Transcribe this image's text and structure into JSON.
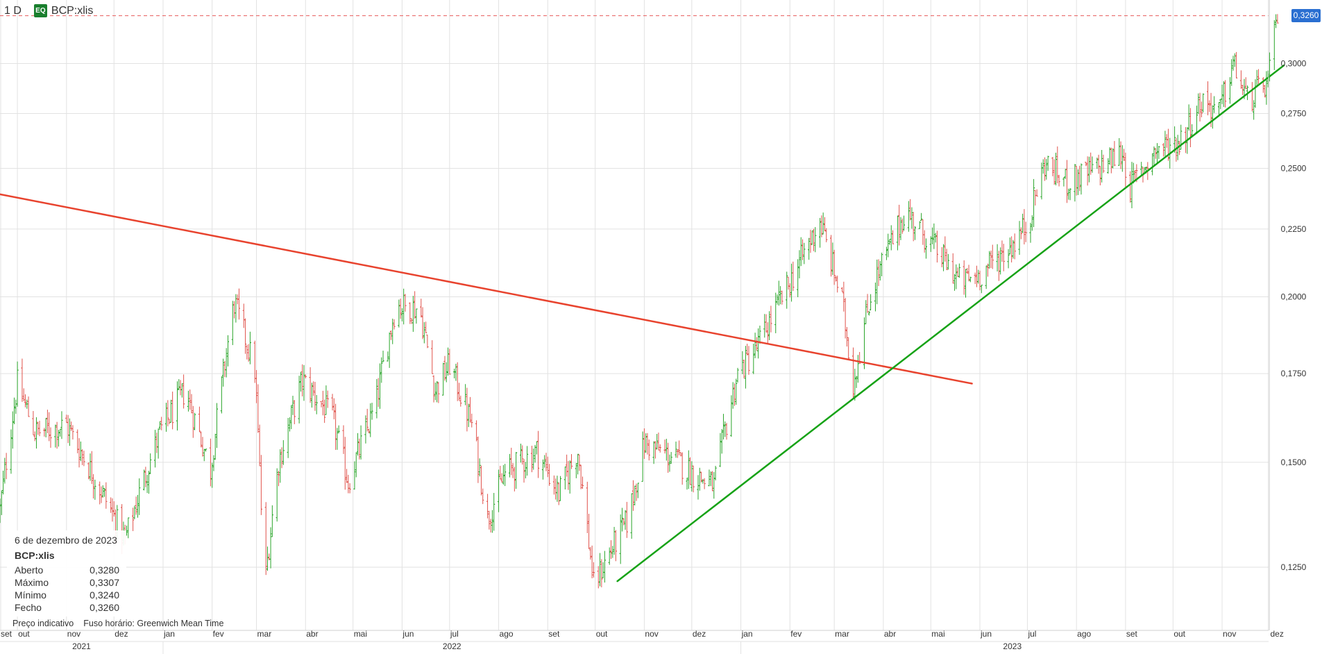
{
  "header": {
    "period": "1 D",
    "badge": "EQ",
    "symbol": "BCP:xlis"
  },
  "info_box": {
    "date": "6 de dezembro de 2023",
    "symbol": "BCP:xlis",
    "rows": [
      {
        "label": "Aberto",
        "value": "0,3280"
      },
      {
        "label": "Máximo",
        "value": "0,3307"
      },
      {
        "label": "Mínimo",
        "value": "0,3240"
      },
      {
        "label": "Fecho",
        "value": "0,3260"
      }
    ]
  },
  "footer": {
    "price_note": "Preço indicativo",
    "timezone": "Fuso horário: Greenwich Mean Time"
  },
  "last_price_label": "0,3260",
  "colors": {
    "up": "#2aa52a",
    "down": "#e0524b",
    "resistance": "#e8432e",
    "support": "#17a317",
    "last_price": "#2a6fd1",
    "grid": "#e2e2e2"
  },
  "chart_data": {
    "type": "candlestick",
    "title": "BCP:xlis",
    "xlabel": "",
    "ylabel": "",
    "ylim": [
      0.112,
      0.335
    ],
    "y_scale": "log",
    "y_ticks": [
      "0,1250",
      "0,1500",
      "0,1750",
      "0,2000",
      "0,2250",
      "0,2500",
      "0,2750",
      "0,3000"
    ],
    "x_month_labels": [
      "set",
      "out",
      "nov",
      "dez",
      "jan",
      "fev",
      "mar",
      "abr",
      "mai",
      "jun",
      "jul",
      "ago",
      "set",
      "out",
      "nov",
      "dez",
      "jan",
      "fev",
      "mar",
      "abr",
      "mai",
      "jun",
      "jul",
      "ago",
      "set",
      "out",
      "nov",
      "dez"
    ],
    "x_year_labels": [
      "2021",
      "2022",
      "2023"
    ],
    "x_range": [
      "2021-09-20",
      "2023-12-10"
    ],
    "last_price": 0.326,
    "grid": true,
    "anchors": [
      [
        "2021-09-20",
        0.138
      ],
      [
        "2021-10-01",
        0.172
      ],
      [
        "2021-10-12",
        0.158
      ],
      [
        "2021-11-01",
        0.16
      ],
      [
        "2021-11-15",
        0.149
      ],
      [
        "2021-12-08",
        0.131
      ],
      [
        "2021-12-30",
        0.158
      ],
      [
        "2022-01-15",
        0.17
      ],
      [
        "2022-01-31",
        0.148
      ],
      [
        "2022-02-15",
        0.198
      ],
      [
        "2022-02-28",
        0.176
      ],
      [
        "2022-03-06",
        0.12
      ],
      [
        "2022-03-15",
        0.15
      ],
      [
        "2022-03-30",
        0.173
      ],
      [
        "2022-04-18",
        0.162
      ],
      [
        "2022-04-28",
        0.145
      ],
      [
        "2022-05-15",
        0.165
      ],
      [
        "2022-05-28",
        0.197
      ],
      [
        "2022-06-12",
        0.196
      ],
      [
        "2022-06-22",
        0.17
      ],
      [
        "2022-07-01",
        0.178
      ],
      [
        "2022-07-15",
        0.16
      ],
      [
        "2022-07-25",
        0.136
      ],
      [
        "2022-08-05",
        0.147
      ],
      [
        "2022-08-25",
        0.153
      ],
      [
        "2022-09-08",
        0.142
      ],
      [
        "2022-09-20",
        0.153
      ],
      [
        "2022-09-30",
        0.121
      ],
      [
        "2022-10-10",
        0.128
      ],
      [
        "2022-10-22",
        0.136
      ],
      [
        "2022-11-01",
        0.155
      ],
      [
        "2022-11-20",
        0.151
      ],
      [
        "2022-12-02",
        0.147
      ],
      [
        "2022-12-15",
        0.144
      ],
      [
        "2022-12-30",
        0.175
      ],
      [
        "2023-01-10",
        0.182
      ],
      [
        "2023-02-01",
        0.205
      ],
      [
        "2023-02-20",
        0.228
      ],
      [
        "2023-03-06",
        0.198
      ],
      [
        "2023-03-13",
        0.172
      ],
      [
        "2023-03-25",
        0.203
      ],
      [
        "2023-04-15",
        0.232
      ],
      [
        "2023-04-28",
        0.222
      ],
      [
        "2023-05-20",
        0.205
      ],
      [
        "2023-06-01",
        0.208
      ],
      [
        "2023-06-20",
        0.218
      ],
      [
        "2023-07-01",
        0.227
      ],
      [
        "2023-07-12",
        0.252
      ],
      [
        "2023-07-26",
        0.244
      ],
      [
        "2023-08-15",
        0.25
      ],
      [
        "2023-08-30",
        0.257
      ],
      [
        "2023-09-04",
        0.242
      ],
      [
        "2023-09-20",
        0.258
      ],
      [
        "2023-10-05",
        0.262
      ],
      [
        "2023-10-20",
        0.282
      ],
      [
        "2023-10-30",
        0.275
      ],
      [
        "2023-11-08",
        0.3
      ],
      [
        "2023-11-17",
        0.281
      ],
      [
        "2023-11-30",
        0.29
      ],
      [
        "2023-12-06",
        0.326
      ]
    ],
    "trendlines": [
      {
        "name": "resistance",
        "from": [
          "2021-09-20",
          0.239
        ],
        "to": [
          "2023-05-27",
          0.172
        ]
      },
      {
        "name": "support",
        "from": [
          "2022-10-15",
          0.122
        ],
        "to": [
          "2023-12-10",
          0.299
        ]
      }
    ]
  }
}
